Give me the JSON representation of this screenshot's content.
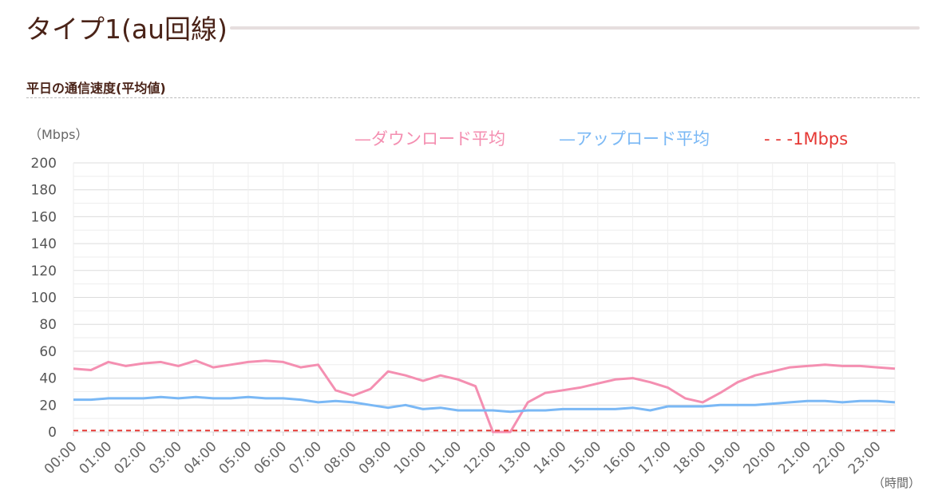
{
  "page": {
    "title": "タイプ1(au回線)",
    "section_title": "平日の通信速度(平均値)"
  },
  "colors": {
    "download": "#f48fb1",
    "upload": "#7ab8f5",
    "threshold": "#e53935",
    "title_text": "#4a2318"
  },
  "chart_data": {
    "type": "line",
    "title": "",
    "y_unit_label": "（Mbps）",
    "x_unit_label": "（時間）",
    "ylim": [
      0,
      200
    ],
    "yticks": [
      0,
      20,
      40,
      60,
      80,
      100,
      120,
      140,
      160,
      180,
      200
    ],
    "grid": true,
    "legend_position": "top",
    "xticks": [
      "00:00",
      "01:00",
      "02:00",
      "03:00",
      "04:00",
      "05:00",
      "06:00",
      "07:00",
      "08:00",
      "09:00",
      "10:00",
      "11:00",
      "12:00",
      "13:00",
      "14:00",
      "15:00",
      "16:00",
      "17:00",
      "18:00",
      "19:00",
      "20:00",
      "21:00",
      "22:00",
      "23:00"
    ],
    "x": [
      "00:00",
      "00:30",
      "01:00",
      "01:30",
      "02:00",
      "02:30",
      "03:00",
      "03:30",
      "04:00",
      "04:30",
      "05:00",
      "05:30",
      "06:00",
      "06:30",
      "07:00",
      "07:30",
      "08:00",
      "08:30",
      "09:00",
      "09:30",
      "10:00",
      "10:30",
      "11:00",
      "11:30",
      "12:00",
      "12:30",
      "13:00",
      "13:30",
      "14:00",
      "14:30",
      "15:00",
      "15:30",
      "16:00",
      "16:30",
      "17:00",
      "17:30",
      "18:00",
      "18:30",
      "19:00",
      "19:30",
      "20:00",
      "20:30",
      "21:00",
      "21:30",
      "22:00",
      "22:30",
      "23:00",
      "23:30"
    ],
    "series": [
      {
        "name": "ダウンロード平均",
        "legend_label": "—ダウンロード平均",
        "style": "solid",
        "values": [
          47,
          46,
          52,
          49,
          51,
          52,
          49,
          53,
          48,
          50,
          52,
          53,
          52,
          48,
          50,
          31,
          27,
          32,
          45,
          42,
          38,
          42,
          39,
          34,
          0,
          0,
          22,
          29,
          31,
          33,
          36,
          39,
          40,
          37,
          33,
          25,
          22,
          29,
          37,
          42,
          45,
          48,
          49,
          50,
          49,
          49,
          48,
          47
        ]
      },
      {
        "name": "アップロード平均",
        "legend_label": "—アップロード平均",
        "style": "solid",
        "values": [
          24,
          24,
          25,
          25,
          25,
          26,
          25,
          26,
          25,
          25,
          26,
          25,
          25,
          24,
          22,
          23,
          22,
          20,
          18,
          20,
          17,
          18,
          16,
          16,
          16,
          15,
          16,
          16,
          17,
          17,
          17,
          17,
          18,
          16,
          19,
          19,
          19,
          20,
          20,
          20,
          21,
          22,
          23,
          23,
          22,
          23,
          23,
          22
        ]
      },
      {
        "name": "1Mbps",
        "legend_label": "- - -1Mbps",
        "style": "dashed",
        "values": [
          1,
          1,
          1,
          1,
          1,
          1,
          1,
          1,
          1,
          1,
          1,
          1,
          1,
          1,
          1,
          1,
          1,
          1,
          1,
          1,
          1,
          1,
          1,
          1,
          1,
          1,
          1,
          1,
          1,
          1,
          1,
          1,
          1,
          1,
          1,
          1,
          1,
          1,
          1,
          1,
          1,
          1,
          1,
          1,
          1,
          1,
          1,
          1
        ]
      }
    ]
  }
}
